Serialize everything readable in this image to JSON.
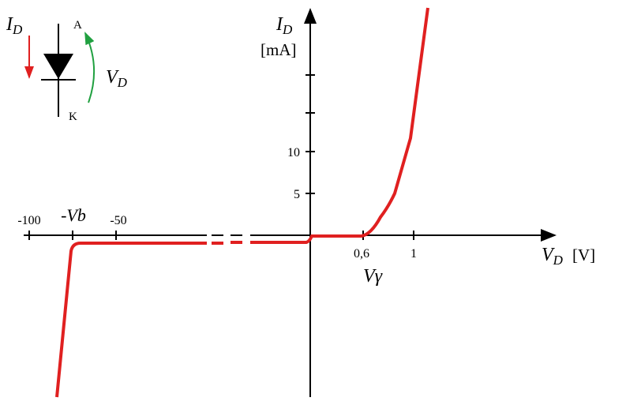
{
  "symbol": {
    "current": "I",
    "current_sub": "D",
    "anode": "A",
    "cathode": "K",
    "voltage": "V",
    "voltage_sub": "D"
  },
  "y_axis": {
    "label": "I",
    "label_sub": "D",
    "unit": "[mA]",
    "ticks": [
      "10",
      "5"
    ]
  },
  "x_axis": {
    "label": "V",
    "label_sub": "D",
    "unit": "[V]",
    "ticks": [
      "-100",
      "-Vb",
      "-50",
      "0,6",
      "1"
    ],
    "annotation": "Vγ"
  }
}
